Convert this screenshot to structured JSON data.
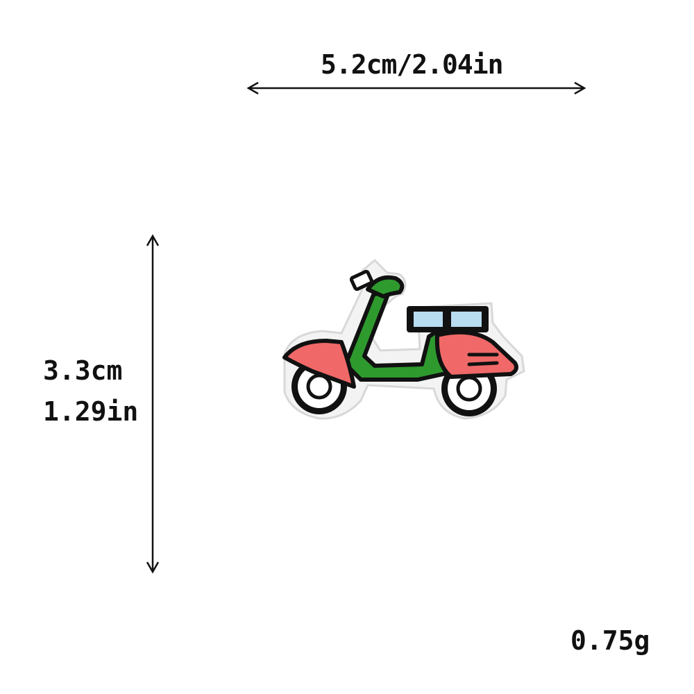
{
  "dimensions": {
    "width_text": "5.2cm/2.04in",
    "height_cm_text": "3.3cm",
    "height_in_text": "1.29in",
    "weight_text": "0.75g"
  },
  "patch": {
    "icon": "scooter-icon",
    "colors": {
      "body": "#2e9a2e",
      "fender": "#f06868",
      "seat": "#b8dcf0",
      "outline": "#111111",
      "border": "#f4f4f4",
      "wheel": "#ffffff"
    }
  }
}
